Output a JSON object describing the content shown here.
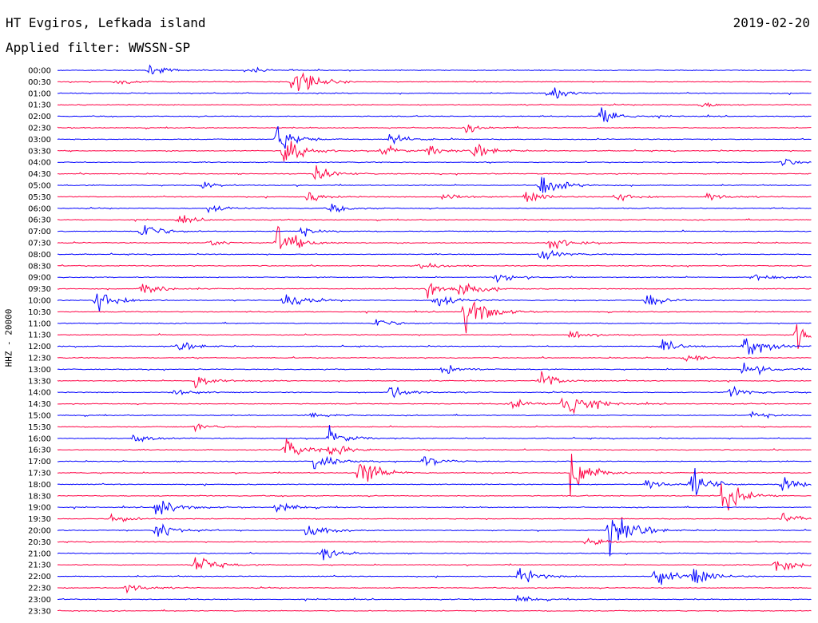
{
  "header": {
    "station": "HT Evgiros, Lefkada island",
    "date": "2019-02-20",
    "filter": "Applied filter: WWSSN-SP",
    "channel": "HHZ - 20000"
  },
  "colors": {
    "odd": "#0000ff",
    "even": "#ff0044"
  },
  "chart_data": {
    "type": "line",
    "title": "HT Evgiros, Lefkada island",
    "subtitle": "Applied filter: WWSSN-SP",
    "ylabel": "HHZ - 20000",
    "tick_labels": [
      "00:00",
      "00:30",
      "01:00",
      "01:30",
      "02:00",
      "02:30",
      "03:00",
      "03:30",
      "04:00",
      "04:30",
      "05:00",
      "05:30",
      "06:00",
      "06:30",
      "07:00",
      "07:30",
      "08:00",
      "08:30",
      "09:00",
      "09:30",
      "10:00",
      "10:30",
      "11:00",
      "11:30",
      "12:00",
      "12:30",
      "13:00",
      "13:30",
      "14:00",
      "14:30",
      "15:00",
      "15:30",
      "16:00",
      "16:30",
      "17:00",
      "17:30",
      "18:00",
      "18:30",
      "19:00",
      "19:30",
      "20:00",
      "20:30",
      "21:00",
      "21:30",
      "22:00",
      "22:30",
      "23:00",
      "23:30"
    ],
    "traces_colors": [
      "blue",
      "red"
    ],
    "x_range": [
      0,
      1
    ],
    "y_unit": "trace amplitude (relative)",
    "events": [
      {
        "trace": 0,
        "x": 0.12,
        "amp": 0.5
      },
      {
        "trace": 0,
        "x": 0.25,
        "amp": 0.4
      },
      {
        "trace": 1,
        "x": 0.31,
        "amp": 2.6
      },
      {
        "trace": 1,
        "x": 0.08,
        "amp": 0.3
      },
      {
        "trace": 2,
        "x": 0.65,
        "amp": 0.8
      },
      {
        "trace": 3,
        "x": 0.85,
        "amp": 0.3
      },
      {
        "trace": 4,
        "x": 0.72,
        "amp": 1.2
      },
      {
        "trace": 5,
        "x": 0.54,
        "amp": 0.5
      },
      {
        "trace": 6,
        "x": 0.29,
        "amp": 1.6
      },
      {
        "trace": 6,
        "x": 0.44,
        "amp": 0.6
      },
      {
        "trace": 7,
        "x": 0.3,
        "amp": 1.7
      },
      {
        "trace": 7,
        "x": 0.43,
        "amp": 0.6
      },
      {
        "trace": 7,
        "x": 0.55,
        "amp": 0.8
      },
      {
        "trace": 7,
        "x": 0.49,
        "amp": 0.6
      },
      {
        "trace": 8,
        "x": 0.96,
        "amp": 0.4
      },
      {
        "trace": 9,
        "x": 0.34,
        "amp": 0.9
      },
      {
        "trace": 10,
        "x": 0.64,
        "amp": 1.4
      },
      {
        "trace": 10,
        "x": 0.19,
        "amp": 0.4
      },
      {
        "trace": 11,
        "x": 0.33,
        "amp": 0.5
      },
      {
        "trace": 11,
        "x": 0.51,
        "amp": 0.6
      },
      {
        "trace": 11,
        "x": 0.62,
        "amp": 0.6
      },
      {
        "trace": 11,
        "x": 0.74,
        "amp": 0.6
      },
      {
        "trace": 11,
        "x": 0.86,
        "amp": 0.5
      },
      {
        "trace": 12,
        "x": 0.2,
        "amp": 0.5
      },
      {
        "trace": 12,
        "x": 0.36,
        "amp": 0.5
      },
      {
        "trace": 13,
        "x": 0.16,
        "amp": 0.4
      },
      {
        "trace": 14,
        "x": 0.11,
        "amp": 1.1
      },
      {
        "trace": 14,
        "x": 0.32,
        "amp": 0.5
      },
      {
        "trace": 15,
        "x": 0.29,
        "amp": 2.2
      },
      {
        "trace": 15,
        "x": 0.2,
        "amp": 0.4
      },
      {
        "trace": 15,
        "x": 0.65,
        "amp": 0.9
      },
      {
        "trace": 16,
        "x": 0.64,
        "amp": 0.6
      },
      {
        "trace": 17,
        "x": 0.48,
        "amp": 0.5
      },
      {
        "trace": 18,
        "x": 0.58,
        "amp": 0.6
      },
      {
        "trace": 18,
        "x": 0.92,
        "amp": 0.6
      },
      {
        "trace": 19,
        "x": 0.11,
        "amp": 0.9
      },
      {
        "trace": 19,
        "x": 0.49,
        "amp": 1.0
      },
      {
        "trace": 19,
        "x": 0.53,
        "amp": 1.2
      },
      {
        "trace": 20,
        "x": 0.05,
        "amp": 1.6
      },
      {
        "trace": 20,
        "x": 0.3,
        "amp": 1.2
      },
      {
        "trace": 20,
        "x": 0.5,
        "amp": 1.0
      },
      {
        "trace": 20,
        "x": 0.78,
        "amp": 0.8
      },
      {
        "trace": 21,
        "x": 0.54,
        "amp": 2.8
      },
      {
        "trace": 22,
        "x": 0.42,
        "amp": 0.6
      },
      {
        "trace": 23,
        "x": 0.68,
        "amp": 0.6
      },
      {
        "trace": 23,
        "x": 0.98,
        "amp": 1.6
      },
      {
        "trace": 24,
        "x": 0.16,
        "amp": 0.5
      },
      {
        "trace": 24,
        "x": 0.8,
        "amp": 0.6
      },
      {
        "trace": 24,
        "x": 0.91,
        "amp": 1.6
      },
      {
        "trace": 25,
        "x": 0.83,
        "amp": 0.5
      },
      {
        "trace": 26,
        "x": 0.51,
        "amp": 0.7
      },
      {
        "trace": 26,
        "x": 0.91,
        "amp": 1.0
      },
      {
        "trace": 27,
        "x": 0.18,
        "amp": 1.0
      },
      {
        "trace": 27,
        "x": 0.64,
        "amp": 1.0
      },
      {
        "trace": 28,
        "x": 0.15,
        "amp": 0.5
      },
      {
        "trace": 28,
        "x": 0.44,
        "amp": 0.8
      },
      {
        "trace": 28,
        "x": 0.89,
        "amp": 0.6
      },
      {
        "trace": 29,
        "x": 0.67,
        "amp": 3.0
      },
      {
        "trace": 29,
        "x": 0.6,
        "amp": 0.6
      },
      {
        "trace": 30,
        "x": 0.33,
        "amp": 0.4
      },
      {
        "trace": 30,
        "x": 0.92,
        "amp": 0.4
      },
      {
        "trace": 31,
        "x": 0.18,
        "amp": 0.4
      },
      {
        "trace": 32,
        "x": 0.1,
        "amp": 0.5
      },
      {
        "trace": 32,
        "x": 0.36,
        "amp": 1.0
      },
      {
        "trace": 33,
        "x": 0.3,
        "amp": 1.2
      },
      {
        "trace": 33,
        "x": 0.36,
        "amp": 0.8
      },
      {
        "trace": 34,
        "x": 0.34,
        "amp": 1.0
      },
      {
        "trace": 34,
        "x": 0.48,
        "amp": 0.8
      },
      {
        "trace": 35,
        "x": 0.4,
        "amp": 1.8
      },
      {
        "trace": 35,
        "x": 0.68,
        "amp": 2.4
      },
      {
        "trace": 36,
        "x": 0.84,
        "amp": 1.6
      },
      {
        "trace": 36,
        "x": 0.96,
        "amp": 0.8
      },
      {
        "trace": 36,
        "x": 0.78,
        "amp": 0.6
      },
      {
        "trace": 37,
        "x": 0.88,
        "amp": 2.0
      },
      {
        "trace": 38,
        "x": 0.29,
        "amp": 0.6
      },
      {
        "trace": 38,
        "x": 0.13,
        "amp": 1.4
      },
      {
        "trace": 39,
        "x": 0.07,
        "amp": 0.6
      },
      {
        "trace": 39,
        "x": 0.96,
        "amp": 0.6
      },
      {
        "trace": 40,
        "x": 0.13,
        "amp": 1.2
      },
      {
        "trace": 40,
        "x": 0.33,
        "amp": 1.0
      },
      {
        "trace": 40,
        "x": 0.73,
        "amp": 4.0
      },
      {
        "trace": 41,
        "x": 0.7,
        "amp": 0.6
      },
      {
        "trace": 42,
        "x": 0.35,
        "amp": 0.8
      },
      {
        "trace": 43,
        "x": 0.18,
        "amp": 1.4
      },
      {
        "trace": 43,
        "x": 0.95,
        "amp": 0.9
      },
      {
        "trace": 44,
        "x": 0.61,
        "amp": 1.0
      },
      {
        "trace": 44,
        "x": 0.79,
        "amp": 1.2
      },
      {
        "trace": 44,
        "x": 0.84,
        "amp": 1.0
      },
      {
        "trace": 45,
        "x": 0.09,
        "amp": 0.6
      },
      {
        "trace": 46,
        "x": 0.61,
        "amp": 0.4
      }
    ]
  }
}
